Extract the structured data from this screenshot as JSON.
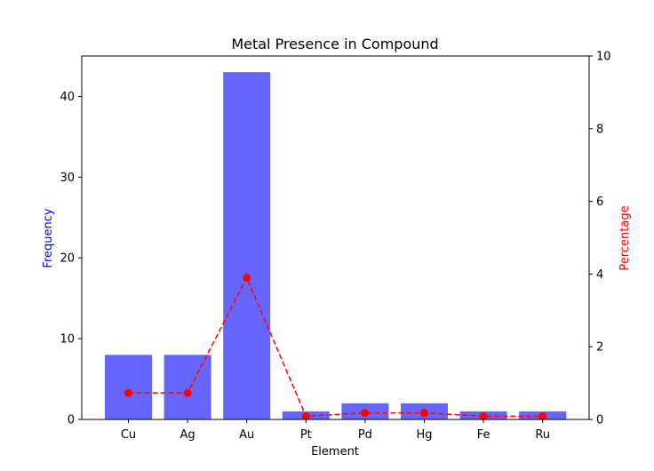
{
  "chart_data": {
    "type": "bar",
    "title": "Metal Presence in Compound",
    "xlabel": "Element",
    "ylabel_left": "Frequency",
    "ylabel_right": "Percentage",
    "categories": [
      "Cu",
      "Ag",
      "Au",
      "Pt",
      "Pd",
      "Hg",
      "Fe",
      "Ru"
    ],
    "series": [
      {
        "type": "bar",
        "axis": "left",
        "color": "#6666ff",
        "values": [
          8,
          8,
          43,
          1,
          2,
          2,
          1,
          1
        ]
      },
      {
        "type": "line",
        "axis": "right",
        "color": "#ff0000",
        "linestyle": "dashed",
        "marker": "circle",
        "values": [
          0.73,
          0.73,
          3.9,
          0.09,
          0.18,
          0.18,
          0.09,
          0.09
        ]
      }
    ],
    "ylim_left": [
      0,
      45
    ],
    "ylim_right": [
      0,
      10
    ],
    "yticks_left": [
      0,
      10,
      20,
      30,
      40
    ],
    "yticks_right": [
      0,
      2,
      4,
      6,
      8,
      10
    ],
    "ylabel_left_color": "#0000ff",
    "ylabel_right_color": "#ff0000",
    "grid": false
  }
}
